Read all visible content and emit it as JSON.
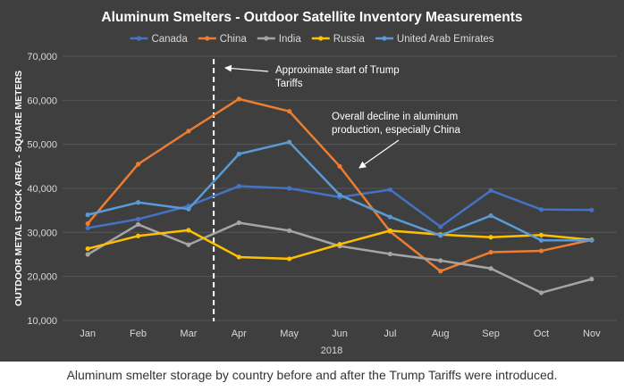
{
  "caption": "Aluminum smelter storage by country before and after the Trump Tariffs were introduced.",
  "chart_data": {
    "type": "line",
    "title": "Aluminum Smelters - Outdoor Satellite Inventory Measurements",
    "xlabel": "2018",
    "ylabel": "OUTDOOR METAL STOCK AREA - SQUARE METERS",
    "categories": [
      "Jan",
      "Feb",
      "Mar",
      "Apr",
      "May",
      "Jun",
      "Jul",
      "Aug",
      "Sep",
      "Oct",
      "Nov"
    ],
    "ylim": [
      10000,
      70000
    ],
    "yticks": [
      10000,
      20000,
      30000,
      40000,
      50000,
      60000,
      70000
    ],
    "ytick_labels": [
      "10,000",
      "20,000",
      "30,000",
      "40,000",
      "50,000",
      "60,000",
      "70,000"
    ],
    "legend_position": "top",
    "series": [
      {
        "name": "Canada",
        "color": "#4472c4",
        "values": [
          31000,
          33000,
          36000,
          40500,
          40000,
          38000,
          39700,
          31300,
          39500,
          35200,
          35100
        ]
      },
      {
        "name": "China",
        "color": "#ed7d31",
        "values": [
          32000,
          45500,
          53000,
          60300,
          57500,
          45000,
          30200,
          21200,
          25500,
          25800,
          28300
        ]
      },
      {
        "name": "India",
        "color": "#a5a5a5",
        "values": [
          25000,
          31800,
          27200,
          32200,
          30400,
          26900,
          25100,
          23600,
          21800,
          16300,
          19400
        ]
      },
      {
        "name": "Russia",
        "color": "#ffc000",
        "values": [
          26300,
          29200,
          30500,
          24400,
          24000,
          27300,
          30400,
          29500,
          28900,
          29400,
          28300
        ]
      },
      {
        "name": "United Arab Emirates",
        "color": "#5b9bd5",
        "values": [
          34000,
          36800,
          35300,
          47800,
          50500,
          38500,
          33500,
          29300,
          33800,
          28200,
          28200
        ]
      }
    ],
    "vline": {
      "after_category": "Mar",
      "fraction": 0.5
    },
    "annotations": [
      {
        "text": [
          "Approximate start of Trump",
          "Tariffs"
        ]
      },
      {
        "text": [
          "Overall decline in aluminum",
          "production, especially China"
        ]
      }
    ]
  }
}
